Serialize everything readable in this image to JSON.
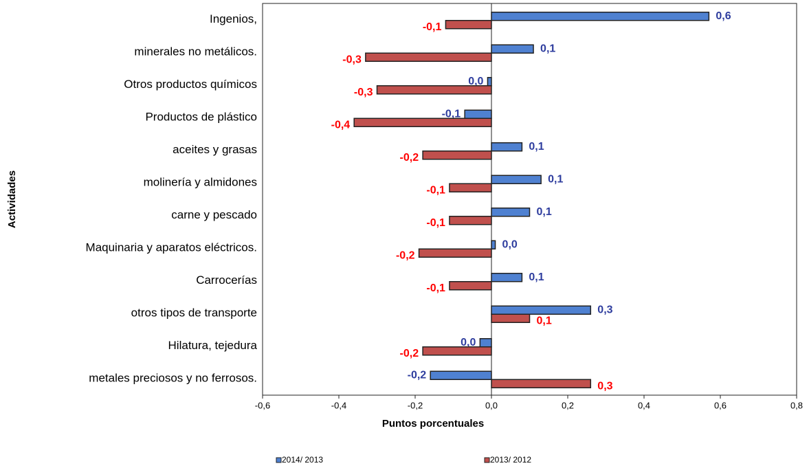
{
  "chart_data": {
    "type": "hbar",
    "xlabel": "Puntos porcentuales",
    "ylabel": "Actividades",
    "categories": [
      "Ingenios,",
      "minerales no metálicos.",
      "Otros productos químicos",
      "Productos de plástico",
      "aceites y grasas",
      "molinería y almidones",
      "carne y pescado",
      "Maquinaria y aparatos eléctricos.",
      "Carrocerías",
      "otros tipos de transporte",
      "Hilatura, tejedura",
      "metales preciosos  y no ferrosos."
    ],
    "series": [
      {
        "name": "2014/ 2013",
        "color": "#4f81d1",
        "label_color": "#2e3d9e",
        "values": [
          0.57,
          0.11,
          -0.01,
          -0.07,
          0.08,
          0.13,
          0.1,
          0.01,
          0.08,
          0.26,
          -0.03,
          -0.16
        ],
        "value_labels": [
          "0,6",
          "0,1",
          "0,0",
          "-0,1",
          "0,1",
          "0,1",
          "0,1",
          "0,0",
          "0,1",
          "0,3",
          "0,0",
          "-0,2"
        ]
      },
      {
        "name": "2013/ 2012",
        "color": "#c0504d",
        "label_color": "#ff0000",
        "values": [
          -0.12,
          -0.33,
          -0.3,
          -0.36,
          -0.18,
          -0.11,
          -0.11,
          -0.19,
          -0.11,
          0.1,
          -0.18,
          0.26
        ],
        "value_labels": [
          "-0,1",
          "-0,3",
          "-0,3",
          "-0,4",
          "-0,2",
          "-0,1",
          "-0,1",
          "-0,2",
          "-0,1",
          "0,1",
          "-0,2",
          "0,3"
        ]
      }
    ],
    "xlim": [
      -0.6,
      0.8
    ],
    "xticks": [
      {
        "value": -0.6,
        "label": "-0,6"
      },
      {
        "value": -0.4,
        "label": "-0,4"
      },
      {
        "value": -0.2,
        "label": "-0,2"
      },
      {
        "value": 0,
        "label": "0,0"
      },
      {
        "value": 0.2,
        "label": "0,2"
      },
      {
        "value": 0.4,
        "label": "0,4"
      },
      {
        "value": 0.6,
        "label": "0,6"
      },
      {
        "value": 0.8,
        "label": "0,8"
      }
    ],
    "grid": false,
    "legend": "bottom"
  }
}
